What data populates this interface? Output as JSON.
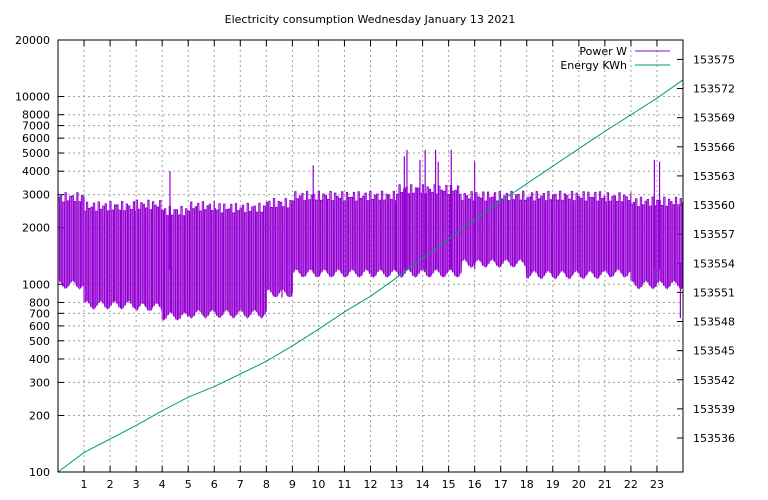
{
  "chart_data": {
    "type": "line",
    "title": "Electricity consumption Wednesday January 13 2021",
    "xlabel": "",
    "ylabel": "",
    "y2label": "",
    "grid": true,
    "legend_position": "top-right",
    "x_range": [
      0,
      24
    ],
    "x_ticks": [
      1,
      2,
      3,
      4,
      5,
      6,
      7,
      8,
      9,
      10,
      11,
      12,
      13,
      14,
      15,
      16,
      17,
      18,
      19,
      20,
      21,
      22,
      23
    ],
    "y_axis": {
      "scale": "log",
      "range": [
        100,
        20000
      ],
      "ticks": [
        100,
        200,
        300,
        400,
        500,
        600,
        700,
        800,
        1000,
        2000,
        3000,
        4000,
        5000,
        6000,
        7000,
        8000,
        10000,
        20000
      ]
    },
    "y2_axis": {
      "scale": "linear",
      "range": [
        153532.5,
        153577
      ],
      "ticks": [
        153536,
        153539,
        153542,
        153545,
        153548,
        153551,
        153554,
        153557,
        153560,
        153563,
        153566,
        153569,
        153572,
        153575
      ]
    },
    "series": [
      {
        "name": "Power W",
        "axis": "left",
        "color": "#9400d3",
        "style": "square-wave",
        "segments": [
          {
            "from": 0.0,
            "to": 1.0,
            "low": 1000,
            "high": 2900,
            "period": 0.09
          },
          {
            "from": 1.0,
            "to": 3.0,
            "low": 780,
            "high": 2600,
            "period": 0.09
          },
          {
            "from": 3.0,
            "to": 4.0,
            "low": 760,
            "high": 2650,
            "period": 0.09
          },
          {
            "from": 4.0,
            "to": 5.0,
            "low": 680,
            "high": 2450,
            "period": 0.09
          },
          {
            "from": 5.0,
            "to": 6.0,
            "low": 700,
            "high": 2600,
            "period": 0.09
          },
          {
            "from": 6.0,
            "to": 8.0,
            "low": 700,
            "high": 2550,
            "period": 0.09
          },
          {
            "from": 8.0,
            "to": 9.0,
            "low": 900,
            "high": 2700,
            "period": 0.09
          },
          {
            "from": 9.0,
            "to": 13.0,
            "low": 1150,
            "high": 2950,
            "period": 0.09
          },
          {
            "from": 13.0,
            "to": 15.5,
            "low": 1150,
            "high": 3200,
            "period": 0.09
          },
          {
            "from": 15.5,
            "to": 18.0,
            "low": 1300,
            "high": 2950,
            "period": 0.09
          },
          {
            "from": 18.0,
            "to": 21.0,
            "low": 1130,
            "high": 2950,
            "period": 0.09
          },
          {
            "from": 21.0,
            "to": 22.0,
            "low": 1150,
            "high": 2900,
            "period": 0.09
          },
          {
            "from": 22.0,
            "to": 24.0,
            "low": 1000,
            "high": 2750,
            "period": 0.09
          }
        ],
        "spikes": [
          {
            "x": 4.3,
            "y": 4000
          },
          {
            "x": 9.8,
            "y": 4300
          },
          {
            "x": 13.3,
            "y": 4800
          },
          {
            "x": 13.4,
            "y": 5200
          },
          {
            "x": 13.9,
            "y": 4600
          },
          {
            "x": 14.1,
            "y": 5200
          },
          {
            "x": 14.5,
            "y": 5200
          },
          {
            "x": 14.6,
            "y": 4500
          },
          {
            "x": 15.1,
            "y": 5200
          },
          {
            "x": 16.0,
            "y": 4500
          },
          {
            "x": 22.9,
            "y": 4600
          },
          {
            "x": 23.1,
            "y": 4500
          }
        ],
        "dips": [
          {
            "x": 8.6,
            "y": 850
          },
          {
            "x": 23.9,
            "y": 660
          }
        ]
      },
      {
        "name": "Energy KWh",
        "axis": "right",
        "color": "#009e73",
        "x": [
          0,
          1,
          2,
          3,
          4,
          5,
          6,
          7,
          8,
          9,
          10,
          11,
          12,
          13,
          14,
          15,
          16,
          17,
          18,
          19,
          20,
          21,
          22,
          23,
          24
        ],
        "values": [
          153532.5,
          153534.5,
          153535.9,
          153537.3,
          153538.8,
          153540.2,
          153541.3,
          153542.6,
          153543.9,
          153545.5,
          153547.2,
          153549.0,
          153550.6,
          153552.5,
          153554.5,
          153556.5,
          153558.5,
          153560.4,
          153562.2,
          153564.0,
          153565.8,
          153567.6,
          153569.3,
          153571.0,
          153572.9
        ]
      }
    ]
  }
}
